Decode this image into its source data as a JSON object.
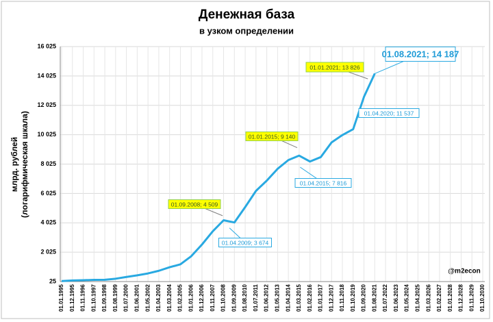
{
  "chart_data": {
    "type": "line",
    "title": "Денежная база",
    "subtitle": "в узком определении",
    "y_label": [
      "млрд. рублей",
      "(логарифмическая шкала)"
    ],
    "watermark": "@m2econ",
    "grid": true,
    "categories": [
      "01.01.1995",
      "01.12.1995",
      "01.11.1996",
      "01.10.1997",
      "01.09.1998",
      "01.08.1999",
      "01.07.2000",
      "01.06.2001",
      "01.05.2002",
      "01.04.2003",
      "01.03.2004",
      "01.02.2005",
      "01.01.2006",
      "01.12.2006",
      "01.11.2007",
      "01.10.2008",
      "01.09.2009",
      "01.08.2010",
      "01.07.2011",
      "01.06.2012",
      "01.05.2013",
      "01.04.2014",
      "01.03.2015",
      "01.02.2016",
      "01.01.2017",
      "01.12.2017",
      "01.11.2018",
      "01.10.2019",
      "01.09.2020",
      "01.08.2021",
      "01.07.2022",
      "01.06.2023",
      "01.05.2024",
      "01.04.2025",
      "01.03.2026",
      "01.02.2027",
      "01.01.2028",
      "01.12.2028",
      "01.11.2029",
      "01.10.2030"
    ],
    "series": [
      {
        "name": "Денежная база",
        "color": "#29a9e1",
        "values": [
          60,
          100,
          120,
          140,
          150,
          220,
          340,
          450,
          580,
          760,
          1000,
          1200,
          1750,
          2550,
          3450,
          4200,
          4050,
          5100,
          6200,
          6900,
          7700,
          8300,
          8600,
          8200,
          8500,
          9500,
          10000,
          10400,
          12600,
          14187,
          null,
          null,
          null,
          null,
          null,
          null,
          null,
          null,
          null,
          null
        ]
      }
    ],
    "ylim": [
      25,
      16025
    ],
    "yticks": [
      25,
      {
        "value": 2025,
        "label": "2 025"
      },
      {
        "value": 4025,
        "label": "4 025"
      },
      {
        "value": 6025,
        "label": "6 025"
      },
      {
        "value": 8025,
        "label": "8 025"
      },
      {
        "value": 10025,
        "label": "10 025"
      },
      {
        "value": 12025,
        "label": "12 025"
      },
      {
        "value": 14025,
        "label": "14 025"
      },
      {
        "value": 16025,
        "label": "16 025"
      }
    ],
    "annotations": [
      {
        "x": "01.01.2021",
        "value": 13826,
        "label": "01.01.2021; 13 826",
        "style": "highlight"
      },
      {
        "x": "01.08.2021",
        "value": 14187,
        "label": "01.08.2021; 14 187",
        "style": "large"
      },
      {
        "x": "01.04.2020",
        "value": 11537,
        "label": "01.04.2020; 11 537",
        "style": "plain"
      },
      {
        "x": "01.01.2015",
        "value": 9140,
        "label": "01.01.2015; 9 140",
        "style": "highlight"
      },
      {
        "x": "01.04.2015",
        "value": 7816,
        "label": "01.04.2015; 7 816",
        "style": "plain"
      },
      {
        "x": "01.09.2008",
        "value": 4509,
        "label": "01.09.2008; 4 509",
        "style": "highlight"
      },
      {
        "x": "01.04.2009",
        "value": 3674,
        "label": "01.04.2009; 3 674",
        "style": "plain"
      }
    ]
  }
}
